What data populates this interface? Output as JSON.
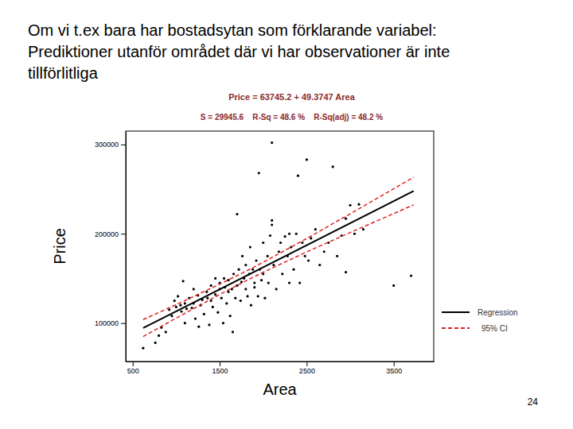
{
  "slide": {
    "text": [
      "Om vi t.ex bara har bostadsytan som förklarande variabel:",
      "Prediktioner utanför området där vi har observationer är inte",
      "tillförlitliga"
    ],
    "page": 24
  },
  "chart_data": {
    "type": "scatter",
    "title": "Price = 63745.2 + 49.3747 Area",
    "subtitle": "S = 29945.6    R-Sq = 48.6 %    R-Sq(adj) = 48.2 %",
    "x_label": "Area",
    "y_label": "Price",
    "xlim": [
      420,
      3960
    ],
    "ylim": [
      57000,
      315000
    ],
    "xticks": [
      500,
      1500,
      2500,
      3500
    ],
    "yticks": [
      100000,
      200000,
      300000
    ],
    "grid": false,
    "legend": "right",
    "series": [
      {
        "type": "scatter",
        "color": "#000000",
        "marker": "circle",
        "x": [
          620,
          760,
          800,
          830,
          880,
          920,
          950,
          980,
          1000,
          1020,
          1050,
          1060,
          1080,
          1100,
          1100,
          1120,
          1150,
          1180,
          1200,
          1200,
          1220,
          1250,
          1260,
          1280,
          1300,
          1320,
          1350,
          1360,
          1380,
          1400,
          1400,
          1420,
          1450,
          1450,
          1480,
          1500,
          1500,
          1520,
          1540,
          1550,
          1560,
          1580,
          1600,
          1600,
          1620,
          1640,
          1650,
          1660,
          1680,
          1700,
          1700,
          1720,
          1740,
          1750,
          1760,
          1780,
          1800,
          1800,
          1820,
          1840,
          1850,
          1860,
          1880,
          1900,
          1900,
          1920,
          1940,
          1950,
          1960,
          1980,
          2000,
          2000,
          2020,
          2050,
          2060,
          2080,
          2100,
          2100,
          2100,
          2120,
          2150,
          2180,
          2200,
          2220,
          2250,
          2280,
          2300,
          2300,
          2320,
          2350,
          2380,
          2400,
          2420,
          2450,
          2480,
          2500,
          2520,
          2550,
          2600,
          2650,
          2700,
          2750,
          2800,
          2850,
          2900,
          2950,
          2950,
          3000,
          3050,
          3100,
          3150,
          3500,
          3700
        ],
        "values": [
          72000,
          78000,
          86000,
          95000,
          90000,
          115000,
          108000,
          125000,
          118000,
          130000,
          120000,
          113000,
          147000,
          122000,
          100000,
          116000,
          128000,
          117000,
          122000,
          138000,
          105000,
          131000,
          96000,
          120000,
          126000,
          110000,
          135000,
          128000,
          98000,
          142000,
          125000,
          118000,
          150000,
          132000,
          112000,
          138000,
          145000,
          128000,
          100000,
          150000,
          140000,
          122000,
          135000,
          148000,
          108000,
          138000,
          90000,
          155000,
          128000,
          222000,
          142000,
          160000,
          125000,
          146000,
          175000,
          150000,
          138000,
          165000,
          130000,
          155000,
          185000,
          120000,
          160000,
          145000,
          140000,
          170000,
          130000,
          268000,
          160000,
          148000,
          190000,
          155000,
          128000,
          175000,
          145000,
          198000,
          302000,
          215000,
          210000,
          165000,
          138000,
          180000,
          190000,
          155000,
          197000,
          175000,
          200000,
          145000,
          185000,
          160000,
          200000,
          265000,
          145000,
          190000,
          175000,
          283000,
          170000,
          195000,
          205000,
          165000,
          180000,
          190000,
          275000,
          175000,
          198000,
          217000,
          157000,
          232000,
          200000,
          233000,
          205000,
          142000,
          153000
        ]
      },
      {
        "name": "Regression",
        "type": "line",
        "color": "#000000",
        "line_style": "solid",
        "x": [
          620,
          3730
        ],
        "values": [
          94400,
          247900
        ]
      },
      {
        "name": "95% CI",
        "type": "line",
        "color": "#e02020",
        "line_style": "dashed",
        "x": [
          620,
          1000,
          1500,
          1800,
          2000,
          2500,
          3000,
          3730
        ],
        "upper": [
          103900,
          120600,
          143600,
          158000,
          168100,
          194700,
          222400,
          263400
        ],
        "lower": [
          84900,
          105600,
          132000,
          147200,
          156900,
          179700,
          201400,
          232400
        ]
      }
    ]
  }
}
